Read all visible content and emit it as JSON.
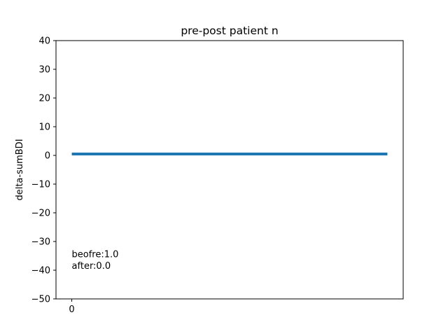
{
  "chart_data": {
    "type": "line",
    "title": "pre-post patient n",
    "xlabel": "",
    "ylabel": "delta-sumBDI",
    "ylim": [
      -50,
      40
    ],
    "yticks": [
      40,
      30,
      20,
      10,
      0,
      -10,
      -20,
      -30,
      -40,
      -50
    ],
    "ytick_labels": [
      "40",
      "30",
      "20",
      "10",
      "0",
      "−10",
      "−20",
      "−30",
      "−40",
      "−50"
    ],
    "xticks": [
      0
    ],
    "xtick_labels": [
      "0"
    ],
    "xlim": [
      -0.05,
      1.05
    ],
    "series": [
      {
        "x": [
          0,
          1
        ],
        "values": [
          0.5,
          0.5
        ],
        "color": "#1f77b4"
      }
    ],
    "annotations": [
      {
        "text": "beofre:1.0",
        "x": 0,
        "y": -35.5
      },
      {
        "text": "after:0.0",
        "x": 0,
        "y": -39.5
      }
    ],
    "grid": false,
    "legend": "none"
  }
}
